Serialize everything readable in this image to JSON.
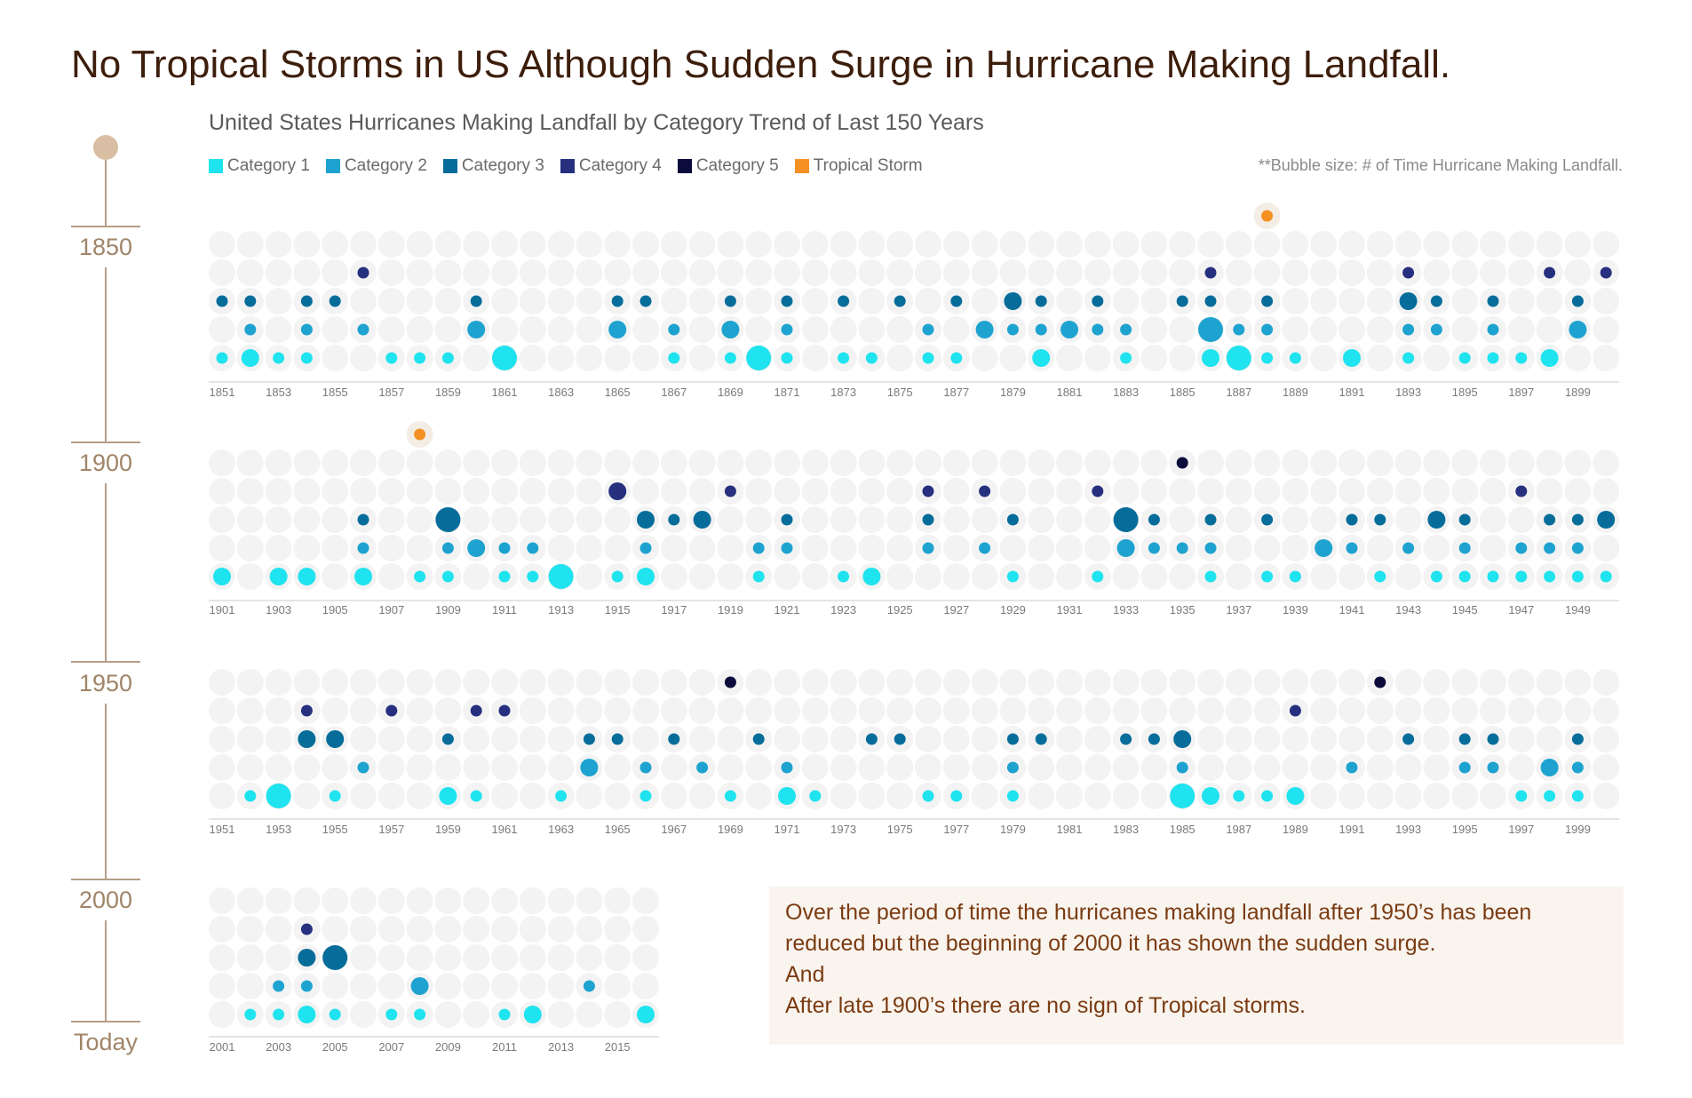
{
  "title": "No Tropical Storms in US Although Sudden Surge in Hurricane Making Landfall.",
  "chart_data": {
    "type": "bubble-grid",
    "title": "No Tropical Storms in US Although Sudden Surge in Hurricane Making Landfall.",
    "subtitle": "United States Hurricanes Making Landfall by Category Trend of Last 150 Years",
    "note": "**Bubble size: # of Time Hurricane Making Landfall.",
    "legend": [
      {
        "name": "Category 1",
        "color": "#1fe3ee"
      },
      {
        "name": "Category 2",
        "color": "#1ea3d0"
      },
      {
        "name": "Category 3",
        "color": "#066d9a"
      },
      {
        "name": "Category 4",
        "color": "#26307f"
      },
      {
        "name": "Category 5",
        "color": "#0b0b3c"
      },
      {
        "name": "Tropical Storm",
        "color": "#f49122"
      }
    ],
    "timeline": [
      "1850",
      "1900",
      "1950",
      "2000",
      "Today"
    ],
    "panels": [
      {
        "start": 1851,
        "count": 50,
        "labels": [
          "1851",
          "1853",
          "1855",
          "1857",
          "1859",
          "1861",
          "1863",
          "1865",
          "1867",
          "1869",
          "1871",
          "1873",
          "1875",
          "1877",
          "1879",
          "1881",
          "1883",
          "1885",
          "1887",
          "1889",
          "1891",
          "1893",
          "1895",
          "1897",
          "1899"
        ],
        "cat1": [
          [
            1851,
            1
          ],
          [
            1852,
            2
          ],
          [
            1853,
            1
          ],
          [
            1854,
            1
          ],
          [
            1857,
            1
          ],
          [
            1858,
            1
          ],
          [
            1859,
            1
          ],
          [
            1861,
            3
          ],
          [
            1867,
            1
          ],
          [
            1869,
            1
          ],
          [
            1870,
            3
          ],
          [
            1871,
            1
          ],
          [
            1873,
            1
          ],
          [
            1874,
            1
          ],
          [
            1876,
            1
          ],
          [
            1877,
            1
          ],
          [
            1880,
            2
          ],
          [
            1883,
            1
          ],
          [
            1886,
            2
          ],
          [
            1887,
            3
          ],
          [
            1888,
            1
          ],
          [
            1889,
            1
          ],
          [
            1891,
            2
          ],
          [
            1893,
            1
          ],
          [
            1895,
            1
          ],
          [
            1896,
            1
          ],
          [
            1897,
            1
          ],
          [
            1898,
            2
          ]
        ],
        "cat2": [
          [
            1852,
            1
          ],
          [
            1854,
            1
          ],
          [
            1856,
            1
          ],
          [
            1860,
            2
          ],
          [
            1865,
            2
          ],
          [
            1867,
            1
          ],
          [
            1869,
            2
          ],
          [
            1871,
            1
          ],
          [
            1876,
            1
          ],
          [
            1878,
            2
          ],
          [
            1879,
            1
          ],
          [
            1880,
            1
          ],
          [
            1881,
            2
          ],
          [
            1882,
            1
          ],
          [
            1883,
            1
          ],
          [
            1886,
            3
          ],
          [
            1887,
            1
          ],
          [
            1888,
            1
          ],
          [
            1893,
            1
          ],
          [
            1894,
            1
          ],
          [
            1896,
            1
          ],
          [
            1899,
            2
          ]
        ],
        "cat3": [
          [
            1851,
            1
          ],
          [
            1852,
            1
          ],
          [
            1854,
            1
          ],
          [
            1855,
            1
          ],
          [
            1860,
            1
          ],
          [
            1865,
            1
          ],
          [
            1866,
            1
          ],
          [
            1869,
            1
          ],
          [
            1871,
            1
          ],
          [
            1873,
            1
          ],
          [
            1875,
            1
          ],
          [
            1877,
            1
          ],
          [
            1879,
            2
          ],
          [
            1880,
            1
          ],
          [
            1882,
            1
          ],
          [
            1885,
            1
          ],
          [
            1886,
            1
          ],
          [
            1888,
            1
          ],
          [
            1893,
            2
          ],
          [
            1894,
            1
          ],
          [
            1896,
            1
          ],
          [
            1899,
            1
          ]
        ],
        "cat4": [
          [
            1856,
            1
          ],
          [
            1886,
            1
          ],
          [
            1893,
            1
          ],
          [
            1898,
            1
          ],
          [
            1900,
            1
          ]
        ],
        "cat5": [],
        "ts": [
          [
            1888,
            1
          ]
        ]
      },
      {
        "start": 1901,
        "count": 50,
        "labels": [
          "1901",
          "1903",
          "1905",
          "1907",
          "1909",
          "1911",
          "1913",
          "1915",
          "1917",
          "1919",
          "1921",
          "1923",
          "1925",
          "1927",
          "1929",
          "1931",
          "1933",
          "1935",
          "1937",
          "1939",
          "1941",
          "1943",
          "1945",
          "1947",
          "1949"
        ],
        "cat1": [
          [
            1901,
            2
          ],
          [
            1903,
            2
          ],
          [
            1904,
            2
          ],
          [
            1906,
            2
          ],
          [
            1908,
            1
          ],
          [
            1909,
            1
          ],
          [
            1911,
            1
          ],
          [
            1912,
            1
          ],
          [
            1913,
            3
          ],
          [
            1915,
            1
          ],
          [
            1916,
            2
          ],
          [
            1920,
            1
          ],
          [
            1923,
            1
          ],
          [
            1924,
            2
          ],
          [
            1929,
            1
          ],
          [
            1932,
            1
          ],
          [
            1936,
            1
          ],
          [
            1938,
            1
          ],
          [
            1939,
            1
          ],
          [
            1942,
            1
          ],
          [
            1944,
            1
          ],
          [
            1945,
            1
          ],
          [
            1946,
            1
          ],
          [
            1947,
            1
          ],
          [
            1948,
            1
          ],
          [
            1949,
            1
          ],
          [
            1950,
            1
          ]
        ],
        "cat2": [
          [
            1906,
            1
          ],
          [
            1909,
            1
          ],
          [
            1910,
            2
          ],
          [
            1911,
            1
          ],
          [
            1912,
            1
          ],
          [
            1916,
            1
          ],
          [
            1920,
            1
          ],
          [
            1921,
            1
          ],
          [
            1926,
            1
          ],
          [
            1928,
            1
          ],
          [
            1933,
            2
          ],
          [
            1934,
            1
          ],
          [
            1935,
            1
          ],
          [
            1936,
            1
          ],
          [
            1940,
            2
          ],
          [
            1941,
            1
          ],
          [
            1943,
            1
          ],
          [
            1945,
            1
          ],
          [
            1947,
            1
          ],
          [
            1948,
            1
          ],
          [
            1949,
            1
          ]
        ],
        "cat3": [
          [
            1906,
            1
          ],
          [
            1909,
            3
          ],
          [
            1916,
            2
          ],
          [
            1917,
            1
          ],
          [
            1918,
            2
          ],
          [
            1921,
            1
          ],
          [
            1926,
            1
          ],
          [
            1929,
            1
          ],
          [
            1933,
            3
          ],
          [
            1934,
            1
          ],
          [
            1936,
            1
          ],
          [
            1938,
            1
          ],
          [
            1941,
            1
          ],
          [
            1942,
            1
          ],
          [
            1944,
            2
          ],
          [
            1945,
            1
          ],
          [
            1948,
            1
          ],
          [
            1949,
            1
          ],
          [
            1950,
            2
          ]
        ],
        "cat4": [
          [
            1915,
            2
          ],
          [
            1919,
            1
          ],
          [
            1926,
            1
          ],
          [
            1928,
            1
          ],
          [
            1932,
            1
          ],
          [
            1947,
            1
          ]
        ],
        "cat5": [
          [
            1935,
            1
          ]
        ],
        "ts": [
          [
            1908,
            1
          ]
        ]
      },
      {
        "start": 1951,
        "count": 50,
        "labels": [
          "1951",
          "1953",
          "1955",
          "1957",
          "1959",
          "1961",
          "1963",
          "1965",
          "1967",
          "1969",
          "1971",
          "1973",
          "1975",
          "1977",
          "1979",
          "1981",
          "1983",
          "1985",
          "1987",
          "1989",
          "1991",
          "1993",
          "1995",
          "1997",
          "1999"
        ],
        "cat1": [
          [
            1952,
            1
          ],
          [
            1953,
            3
          ],
          [
            1955,
            1
          ],
          [
            1959,
            2
          ],
          [
            1960,
            1
          ],
          [
            1963,
            1
          ],
          [
            1966,
            1
          ],
          [
            1969,
            1
          ],
          [
            1971,
            2
          ],
          [
            1972,
            1
          ],
          [
            1976,
            1
          ],
          [
            1977,
            1
          ],
          [
            1979,
            1
          ],
          [
            1985,
            3
          ],
          [
            1986,
            2
          ],
          [
            1987,
            1
          ],
          [
            1988,
            1
          ],
          [
            1989,
            2
          ],
          [
            1997,
            1
          ],
          [
            1998,
            1
          ],
          [
            1999,
            1
          ]
        ],
        "cat2": [
          [
            1956,
            1
          ],
          [
            1964,
            2
          ],
          [
            1966,
            1
          ],
          [
            1968,
            1
          ],
          [
            1971,
            1
          ],
          [
            1979,
            1
          ],
          [
            1985,
            1
          ],
          [
            1991,
            1
          ],
          [
            1995,
            1
          ],
          [
            1996,
            1
          ],
          [
            1998,
            2
          ],
          [
            1999,
            1
          ]
        ],
        "cat3": [
          [
            1954,
            2
          ],
          [
            1955,
            2
          ],
          [
            1959,
            1
          ],
          [
            1964,
            1
          ],
          [
            1965,
            1
          ],
          [
            1967,
            1
          ],
          [
            1970,
            1
          ],
          [
            1974,
            1
          ],
          [
            1975,
            1
          ],
          [
            1979,
            1
          ],
          [
            1980,
            1
          ],
          [
            1983,
            1
          ],
          [
            1984,
            1
          ],
          [
            1985,
            2
          ],
          [
            1993,
            1
          ],
          [
            1995,
            1
          ],
          [
            1996,
            1
          ],
          [
            1999,
            1
          ]
        ],
        "cat4": [
          [
            1954,
            1
          ],
          [
            1957,
            1
          ],
          [
            1960,
            1
          ],
          [
            1961,
            1
          ],
          [
            1989,
            1
          ]
        ],
        "cat5": [
          [
            1969,
            1
          ],
          [
            1992,
            1
          ]
        ],
        "ts": []
      },
      {
        "start": 2001,
        "count": 16,
        "labels": [
          "2001",
          "2003",
          "2005",
          "2007",
          "2009",
          "2011",
          "2013",
          "2015"
        ],
        "cat1": [
          [
            2002,
            1
          ],
          [
            2003,
            1
          ],
          [
            2004,
            2
          ],
          [
            2005,
            1
          ],
          [
            2007,
            1
          ],
          [
            2008,
            1
          ],
          [
            2011,
            1
          ],
          [
            2012,
            2
          ],
          [
            2016,
            2
          ]
        ],
        "cat2": [
          [
            2003,
            1
          ],
          [
            2004,
            1
          ],
          [
            2008,
            2
          ],
          [
            2014,
            1
          ]
        ],
        "cat3": [
          [
            2004,
            2
          ],
          [
            2005,
            3
          ]
        ],
        "cat4": [
          [
            2004,
            1
          ]
        ],
        "cat5": [],
        "ts": []
      }
    ]
  },
  "insight": {
    "line1": "Over the period of time the hurricanes making landfall after 1950’s has been",
    "line2": "reduced but the beginning of 2000 it has shown the sudden surge.",
    "line3": "And",
    "line4": "After late 1900’s there are no sign of Tropical storms."
  }
}
